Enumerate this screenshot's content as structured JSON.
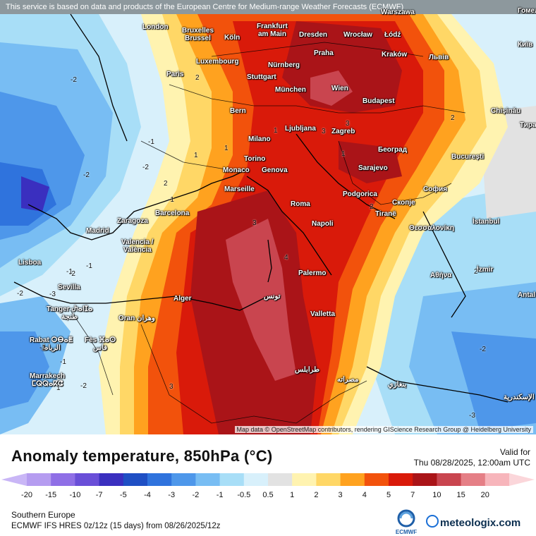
{
  "banner": "This service is based on data and products of the European Centre for Medium-range Weather Forecasts (ECMWF)",
  "attribution": "Map data © OpenStreetMap contributors, rendering GIScience Research Group @ Heidelberg University",
  "title": "Anomaly temperature, 850hPa (°C)",
  "valid_label": "Valid for",
  "valid_time": "Thu 08/28/2025, 12:00am UTC",
  "region": "Southern Europe",
  "model": "ECMWF IFS HRES 0z/12z (15 days) from 08/26/2025/12z",
  "brand": "meteologix.com",
  "ecmwf_logo_text": "ECMWF",
  "legend": {
    "ticks": [
      "-20",
      "-15",
      "-10",
      "-7",
      "-5",
      "-4",
      "-3",
      "-2",
      "-1",
      "-0.5",
      "0.5",
      "1",
      "2",
      "3",
      "4",
      "5",
      "7",
      "10",
      "15",
      "20"
    ],
    "colors": [
      "#b59cf0",
      "#8f6fe6",
      "#6a4fd8",
      "#3a2fbf",
      "#1f4fc4",
      "#2f73dd",
      "#4e97ea",
      "#78bdf3",
      "#a8def7",
      "#d8f0fb",
      "#e2e2e2",
      "#fff3b0",
      "#ffd766",
      "#ffa21f",
      "#f2520c",
      "#d91a0a",
      "#aa1418",
      "#c9454f",
      "#e57f86",
      "#f7b5bb"
    ]
  },
  "cities": [
    {
      "name": "London"
    },
    {
      "name": "Bruxelles\nBrussel"
    },
    {
      "name": "Köln"
    },
    {
      "name": "Frankfurt\nam Main"
    },
    {
      "name": "Luxembourg"
    },
    {
      "name": "Dresden"
    },
    {
      "name": "Wrocław"
    },
    {
      "name": "Łódź"
    },
    {
      "name": "Warszawa"
    },
    {
      "name": "Praha"
    },
    {
      "name": "Kraków"
    },
    {
      "name": "Львів"
    },
    {
      "name": "Nürnberg"
    },
    {
      "name": "Stuttgart"
    },
    {
      "name": "Paris"
    },
    {
      "name": "München"
    },
    {
      "name": "Wien"
    },
    {
      "name": "Budapest"
    },
    {
      "name": "Bern"
    },
    {
      "name": "Chișinău"
    },
    {
      "name": "Ljubljana"
    },
    {
      "name": "Zagreb"
    },
    {
      "name": "Milano"
    },
    {
      "name": "Torino"
    },
    {
      "name": "Београд"
    },
    {
      "name": "București"
    },
    {
      "name": "Monaco"
    },
    {
      "name": "Genova"
    },
    {
      "name": "Sarajevo"
    },
    {
      "name": "Marseille"
    },
    {
      "name": "Podgorica"
    },
    {
      "name": "София"
    },
    {
      "name": "Roma"
    },
    {
      "name": "Скопје"
    },
    {
      "name": "Tiranë"
    },
    {
      "name": "Barcelona"
    },
    {
      "name": "Zaragoza"
    },
    {
      "name": "Napoli"
    },
    {
      "name": "Θεσσαλονίκη"
    },
    {
      "name": "İstanbul"
    },
    {
      "name": "Madrid"
    },
    {
      "name": "Valencia /\nValència"
    },
    {
      "name": "Lisboa"
    },
    {
      "name": "Sevilla"
    },
    {
      "name": "Palermo"
    },
    {
      "name": "Αθήνα"
    },
    {
      "name": "İzmir"
    },
    {
      "name": "Alger"
    },
    {
      "name": "تونس"
    },
    {
      "name": "Valletta"
    },
    {
      "name": "Tanger Ⴐⴰⵏⵊⴰ\nطنجة"
    },
    {
      "name": "Oran وهران"
    },
    {
      "name": "Rabat ⵔⴱⴰⵟ\nالرباط"
    },
    {
      "name": "Fès ⴼⴰⵙ\nفاس"
    },
    {
      "name": "Marrakech\nⵎⵕⵕⴰⴽⵛ"
    },
    {
      "name": "طرابلس"
    },
    {
      "name": "مصراته"
    },
    {
      "name": "بنغازي"
    },
    {
      "name": "الإسكندرية"
    },
    {
      "name": "Antal"
    },
    {
      "name": "Київ"
    },
    {
      "name": "Гомел"
    },
    {
      "name": "Тира"
    }
  ],
  "isolines": [
    "-2",
    "-1",
    "-2",
    "-2",
    "-1",
    "2",
    "1",
    "1",
    "2",
    "1",
    "1",
    "2",
    "3",
    "2",
    "3",
    "4",
    "3",
    "-1",
    "-1",
    "-3",
    "-2",
    "-2",
    "-1",
    "1",
    "-1",
    "-2",
    "2",
    "3",
    "-2",
    "-3"
  ]
}
